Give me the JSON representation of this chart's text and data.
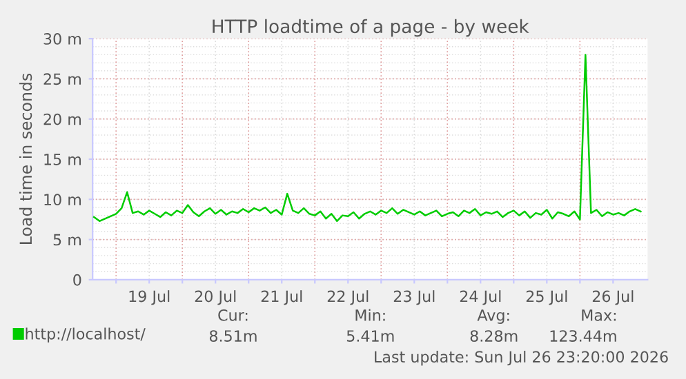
{
  "chart_data": {
    "type": "line",
    "title": "HTTP loadtime of a page - by week",
    "ylabel": "Load time in seconds",
    "x": [
      "2026-07-18T16:00",
      "2026-07-18T18:00",
      "2026-07-18T20:00",
      "2026-07-18T22:00",
      "2026-07-19T00:00",
      "2026-07-19T02:00",
      "2026-07-19T04:00",
      "2026-07-19T06:00",
      "2026-07-19T08:00",
      "2026-07-19T10:00",
      "2026-07-19T12:00",
      "2026-07-19T14:00",
      "2026-07-19T16:00",
      "2026-07-19T18:00",
      "2026-07-19T20:00",
      "2026-07-19T22:00",
      "2026-07-20T00:00",
      "2026-07-20T02:00",
      "2026-07-20T04:00",
      "2026-07-20T06:00",
      "2026-07-20T08:00",
      "2026-07-20T10:00",
      "2026-07-20T12:00",
      "2026-07-20T14:00",
      "2026-07-20T16:00",
      "2026-07-20T18:00",
      "2026-07-20T20:00",
      "2026-07-20T22:00",
      "2026-07-21T00:00",
      "2026-07-21T02:00",
      "2026-07-21T04:00",
      "2026-07-21T06:00",
      "2026-07-21T08:00",
      "2026-07-21T10:00",
      "2026-07-21T12:00",
      "2026-07-21T14:00",
      "2026-07-21T16:00",
      "2026-07-21T18:00",
      "2026-07-21T20:00",
      "2026-07-21T22:00",
      "2026-07-22T00:00",
      "2026-07-22T02:00",
      "2026-07-22T04:00",
      "2026-07-22T06:00",
      "2026-07-22T08:00",
      "2026-07-22T10:00",
      "2026-07-22T12:00",
      "2026-07-22T14:00",
      "2026-07-22T16:00",
      "2026-07-22T18:00",
      "2026-07-22T20:00",
      "2026-07-22T22:00",
      "2026-07-23T00:00",
      "2026-07-23T02:00",
      "2026-07-23T04:00",
      "2026-07-23T06:00",
      "2026-07-23T08:00",
      "2026-07-23T10:00",
      "2026-07-23T12:00",
      "2026-07-23T14:00",
      "2026-07-23T16:00",
      "2026-07-23T18:00",
      "2026-07-23T20:00",
      "2026-07-23T22:00",
      "2026-07-24T00:00",
      "2026-07-24T02:00",
      "2026-07-24T04:00",
      "2026-07-24T06:00",
      "2026-07-24T08:00",
      "2026-07-24T10:00",
      "2026-07-24T12:00",
      "2026-07-24T14:00",
      "2026-07-24T16:00",
      "2026-07-24T18:00",
      "2026-07-24T20:00",
      "2026-07-24T22:00",
      "2026-07-25T00:00",
      "2026-07-25T02:00",
      "2026-07-25T04:00",
      "2026-07-25T06:00",
      "2026-07-25T08:00",
      "2026-07-25T10:00",
      "2026-07-25T12:00",
      "2026-07-25T14:00",
      "2026-07-25T16:00",
      "2026-07-25T18:00",
      "2026-07-25T20:00",
      "2026-07-25T22:00",
      "2026-07-26T00:00",
      "2026-07-26T02:00",
      "2026-07-26T04:00",
      "2026-07-26T06:00",
      "2026-07-26T08:00",
      "2026-07-26T10:00",
      "2026-07-26T12:00",
      "2026-07-26T14:00",
      "2026-07-26T16:00",
      "2026-07-26T18:00",
      "2026-07-26T20:00",
      "2026-07-26T22:00"
    ],
    "series": [
      {
        "name": "http://localhost/",
        "color": "#00cc00",
        "values": [
          7.8,
          7.3,
          7.6,
          7.9,
          8.2,
          8.9,
          10.9,
          8.3,
          8.5,
          8.1,
          8.6,
          8.2,
          7.8,
          8.4,
          8.0,
          8.6,
          8.3,
          9.3,
          8.4,
          7.9,
          8.5,
          8.9,
          8.2,
          8.7,
          8.1,
          8.5,
          8.3,
          8.8,
          8.4,
          8.9,
          8.6,
          9.0,
          8.3,
          8.7,
          8.1,
          10.7,
          8.6,
          8.3,
          8.9,
          8.2,
          8.0,
          8.5,
          7.6,
          8.2,
          7.3,
          8.0,
          7.9,
          8.4,
          7.6,
          8.2,
          8.5,
          8.1,
          8.6,
          8.3,
          8.9,
          8.2,
          8.7,
          8.4,
          8.1,
          8.5,
          8.0,
          8.3,
          8.6,
          7.9,
          8.2,
          8.4,
          7.9,
          8.6,
          8.3,
          8.8,
          8.0,
          8.4,
          8.2,
          8.5,
          7.8,
          8.3,
          8.6,
          8.0,
          8.5,
          7.7,
          8.3,
          8.1,
          8.7,
          7.6,
          8.4,
          8.2,
          7.9,
          8.5,
          7.5,
          28.0,
          8.3,
          8.7,
          7.9,
          8.4,
          8.1,
          8.3,
          8.0,
          8.5,
          8.8,
          8.5
        ]
      }
    ],
    "xlim": [
      "2026-07-18T15:30",
      "2026-07-27T00:30"
    ],
    "xticks": [
      {
        "value": "2026-07-19T00:00",
        "label": null
      },
      {
        "value": "2026-07-19T12:00",
        "label": "19 Jul"
      },
      {
        "value": "2026-07-20T00:00",
        "label": null
      },
      {
        "value": "2026-07-20T12:00",
        "label": "20 Jul"
      },
      {
        "value": "2026-07-21T00:00",
        "label": null
      },
      {
        "value": "2026-07-21T12:00",
        "label": "21 Jul"
      },
      {
        "value": "2026-07-22T00:00",
        "label": null
      },
      {
        "value": "2026-07-22T12:00",
        "label": "22 Jul"
      },
      {
        "value": "2026-07-23T00:00",
        "label": null
      },
      {
        "value": "2026-07-23T12:00",
        "label": "23 Jul"
      },
      {
        "value": "2026-07-24T00:00",
        "label": null
      },
      {
        "value": "2026-07-24T12:00",
        "label": "24 Jul"
      },
      {
        "value": "2026-07-25T00:00",
        "label": null
      },
      {
        "value": "2026-07-25T12:00",
        "label": "25 Jul"
      },
      {
        "value": "2026-07-26T00:00",
        "label": null
      },
      {
        "value": "2026-07-26T12:00",
        "label": "26 Jul"
      }
    ],
    "ylim": [
      0,
      30
    ],
    "yticks": [
      0,
      {
        "value": 5,
        "label": "5 m"
      },
      {
        "value": 10,
        "label": "10 m"
      },
      {
        "value": 15,
        "label": "15 m"
      },
      {
        "value": 20,
        "label": "20 m"
      },
      {
        "value": 25,
        "label": "25 m"
      },
      {
        "value": 30,
        "label": "30 m"
      }
    ],
    "grid": true,
    "legend": "bottom",
    "marker": "none",
    "line_style": "solid",
    "annotations": [
      "Cur:",
      "Min:",
      "Avg:",
      "Max:",
      "8.51m",
      "5.41m",
      "8.28m",
      "123.44m",
      "Last update: Sun Jul 26 23:20:00 2026"
    ]
  }
}
